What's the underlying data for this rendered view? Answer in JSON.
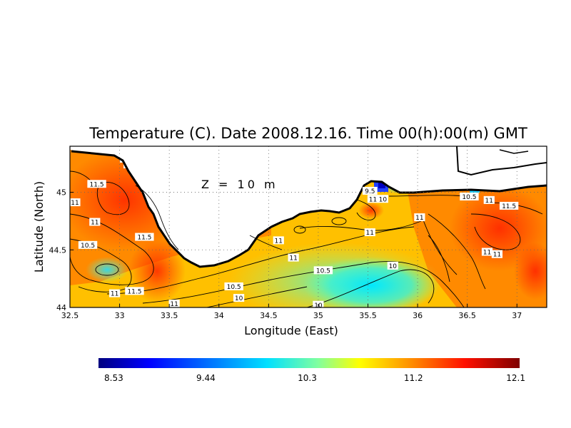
{
  "chart_data": {
    "type": "heatmap",
    "title": "Temperature (C). Date 2008.12.16. Time 00(h):00(m) GMT",
    "xlabel": "Longitude (East)",
    "ylabel": "Latitude (North)",
    "xlim": [
      32.5,
      37.3
    ],
    "ylim": [
      44.0,
      45.4
    ],
    "x_ticks": [
      "32.5",
      "33",
      "33.5",
      "34",
      "34.5",
      "35",
      "35.5",
      "36",
      "36.5",
      "37"
    ],
    "x_tick_values": [
      32.5,
      33,
      33.5,
      34,
      34.5,
      35,
      35.5,
      36,
      36.5,
      37
    ],
    "y_ticks": [
      "44",
      "44.5",
      "45"
    ],
    "y_tick_values": [
      44,
      44.5,
      45
    ],
    "grid": "dotted",
    "annotation": "Z = 10 m",
    "colorbar": {
      "min": 8.53,
      "max": 12.1,
      "ticks": [
        "8.53",
        "9.44",
        "10.3",
        "11.2",
        "12.1"
      ],
      "tick_values": [
        8.53,
        9.44,
        10.3,
        11.2,
        12.1
      ]
    },
    "contour_labels": [
      {
        "lon": 32.77,
        "lat": 45.07,
        "text": "11.5"
      },
      {
        "lon": 32.55,
        "lat": 44.91,
        "text": "11"
      },
      {
        "lon": 32.75,
        "lat": 44.74,
        "text": "11"
      },
      {
        "lon": 32.68,
        "lat": 44.54,
        "text": "10.5"
      },
      {
        "lon": 33.25,
        "lat": 44.61,
        "text": "11.5"
      },
      {
        "lon": 32.95,
        "lat": 44.12,
        "text": "11"
      },
      {
        "lon": 33.15,
        "lat": 44.14,
        "text": "11.5"
      },
      {
        "lon": 33.55,
        "lat": 44.03,
        "text": "11"
      },
      {
        "lon": 34.15,
        "lat": 44.18,
        "text": "10.5"
      },
      {
        "lon": 34.2,
        "lat": 44.08,
        "text": "10"
      },
      {
        "lon": 34.6,
        "lat": 44.58,
        "text": "11"
      },
      {
        "lon": 34.75,
        "lat": 44.43,
        "text": "11"
      },
      {
        "lon": 35.05,
        "lat": 44.32,
        "text": "10.5"
      },
      {
        "lon": 35.0,
        "lat": 44.02,
        "text": "10"
      },
      {
        "lon": 35.52,
        "lat": 44.65,
        "text": "11"
      },
      {
        "lon": 35.52,
        "lat": 45.01,
        "text": "9.5"
      },
      {
        "lon": 35.55,
        "lat": 44.94,
        "text": "11"
      },
      {
        "lon": 35.65,
        "lat": 44.94,
        "text": "10"
      },
      {
        "lon": 35.75,
        "lat": 44.36,
        "text": "10"
      },
      {
        "lon": 36.02,
        "lat": 44.78,
        "text": "11"
      },
      {
        "lon": 36.52,
        "lat": 44.96,
        "text": "10.5"
      },
      {
        "lon": 36.72,
        "lat": 44.93,
        "text": "11"
      },
      {
        "lon": 36.92,
        "lat": 44.88,
        "text": "11.5"
      },
      {
        "lon": 36.7,
        "lat": 44.48,
        "text": "11"
      },
      {
        "lon": 36.8,
        "lat": 44.46,
        "text": "11"
      }
    ]
  }
}
